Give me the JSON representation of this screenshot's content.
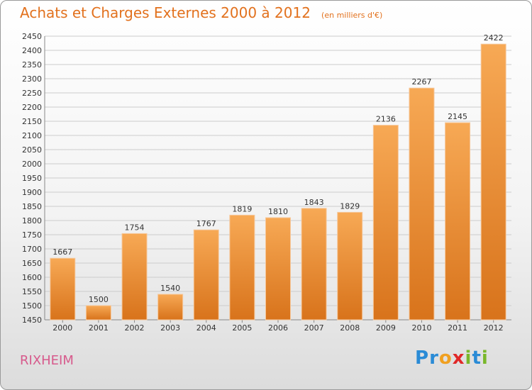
{
  "header": {
    "title": "Achats et Charges Externes 2000 à 2012",
    "unit": "(en milliers d'€)"
  },
  "footer": {
    "place": "RIXHEIM",
    "brand_letters": [
      {
        "ch": "P",
        "color": "#2a8bd6"
      },
      {
        "ch": "r",
        "color": "#2a8bd6"
      },
      {
        "ch": "o",
        "color": "#f0a020"
      },
      {
        "ch": "x",
        "color": "#e02828"
      },
      {
        "ch": "i",
        "color": "#79b72a"
      },
      {
        "ch": "t",
        "color": "#2a8bd6"
      },
      {
        "ch": "i",
        "color": "#79b72a"
      }
    ]
  },
  "colors": {
    "bar_top": "#f7a955",
    "bar_bottom": "#d8731b",
    "grid": "#cccccc"
  },
  "chart_data": {
    "type": "bar",
    "title": "Achats et Charges Externes 2000 à 2012",
    "categories": [
      "2000",
      "2001",
      "2002",
      "2003",
      "2004",
      "2005",
      "2006",
      "2007",
      "2008",
      "2009",
      "2010",
      "2011",
      "2012"
    ],
    "values": [
      1667,
      1500,
      1754,
      1540,
      1767,
      1819,
      1810,
      1843,
      1829,
      2136,
      2267,
      2145,
      2422
    ],
    "ylim": [
      1450,
      2450
    ],
    "yticks": [
      1450,
      1500,
      1550,
      1600,
      1650,
      1700,
      1750,
      1800,
      1850,
      1900,
      1950,
      2000,
      2050,
      2100,
      2150,
      2200,
      2250,
      2300,
      2350,
      2400,
      2450
    ],
    "grid": true
  }
}
